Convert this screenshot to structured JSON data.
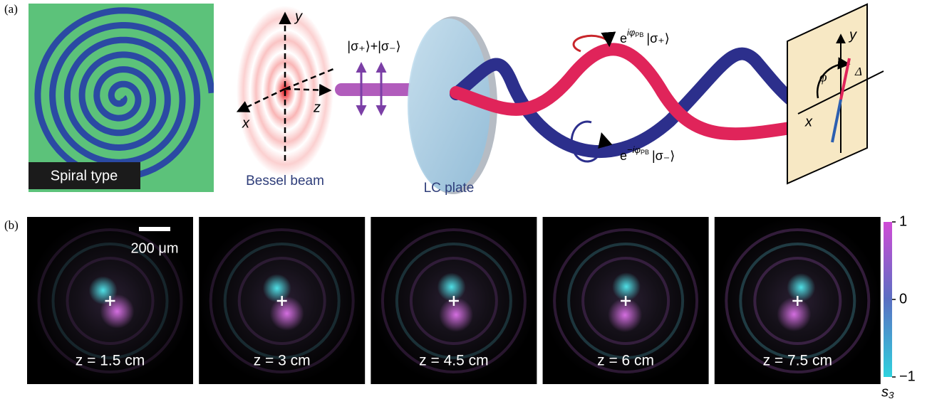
{
  "panel_a": {
    "label": "(a)",
    "spiral_label": "Spiral type",
    "bessel_label": "Bessel beam",
    "lc_label": "LC plate",
    "beam_axes": [
      "y",
      "x",
      "z"
    ],
    "input_state": "|σ₊⟩+|σ₋⟩",
    "plus_state": {
      "base": "e",
      "exp": "iφ",
      "sub": "PB",
      "ket": "|σ₊⟩"
    },
    "minus_state": {
      "base": "e",
      "exp": "−iφ",
      "sub": "PB",
      "ket": "|σ₋⟩"
    },
    "screen_axes": [
      "y",
      "x"
    ],
    "screen_angles": [
      "φ",
      "Δ"
    ]
  },
  "panel_b": {
    "label": "(b)",
    "scale_bar": "200 μm",
    "frames": [
      "z = 1.5 cm",
      "z = 3 cm",
      "z = 4.5 cm",
      "z = 6 cm",
      "z = 7.5 cm"
    ],
    "colorbar": {
      "label": "s₃",
      "ticks": [
        "1",
        "0",
        "−1"
      ]
    }
  }
}
